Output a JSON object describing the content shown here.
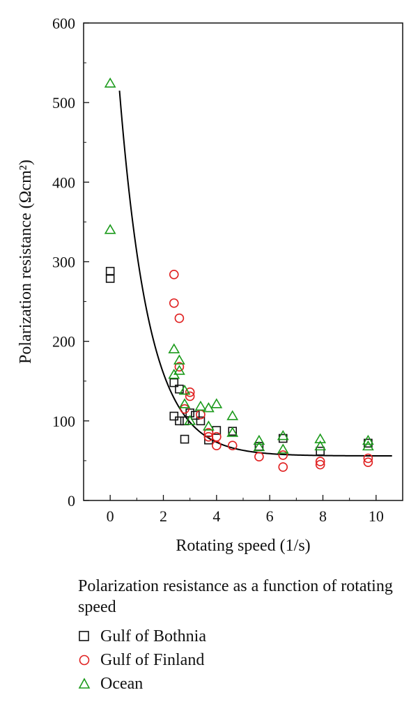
{
  "chart_data": {
    "type": "scatter",
    "xlabel": "Rotating speed (1/s)",
    "ylabel": "Polarization resistance (Ωcm²)",
    "xlim": [
      -1,
      11
    ],
    "ylim": [
      0,
      600
    ],
    "x_ticks": [
      0,
      2,
      4,
      6,
      8,
      10
    ],
    "y_ticks": [
      0,
      100,
      200,
      300,
      400,
      500,
      600
    ],
    "grid": false,
    "legend_position": "below",
    "caption": "Polarization resistance as a function of rotating speed",
    "series": [
      {
        "name": "Gulf of Bothnia",
        "marker": "square",
        "color": "#111111",
        "points": [
          [
            0,
            288
          ],
          [
            0,
            279
          ],
          [
            2.4,
            148
          ],
          [
            2.4,
            106
          ],
          [
            2.6,
            140
          ],
          [
            2.6,
            100
          ],
          [
            2.8,
            100
          ],
          [
            2.8,
            77
          ],
          [
            3.0,
            110
          ],
          [
            3.2,
            107
          ],
          [
            3.4,
            100
          ],
          [
            3.7,
            76
          ],
          [
            4.0,
            88
          ],
          [
            4.6,
            87
          ],
          [
            5.6,
            68
          ],
          [
            6.5,
            78
          ],
          [
            7.9,
            62
          ],
          [
            9.7,
            72
          ]
        ]
      },
      {
        "name": "Gulf of Finland",
        "marker": "circle",
        "color": "#e02020",
        "points": [
          [
            2.4,
            284
          ],
          [
            2.4,
            248
          ],
          [
            2.6,
            229
          ],
          [
            2.6,
            168
          ],
          [
            2.8,
            115
          ],
          [
            3.0,
            136
          ],
          [
            3.0,
            131
          ],
          [
            3.4,
            108
          ],
          [
            3.7,
            85
          ],
          [
            3.7,
            80
          ],
          [
            4.0,
            80
          ],
          [
            4.0,
            69
          ],
          [
            4.6,
            69
          ],
          [
            5.6,
            55
          ],
          [
            6.5,
            57
          ],
          [
            6.5,
            42
          ],
          [
            7.9,
            49
          ],
          [
            7.9,
            45
          ],
          [
            9.7,
            53
          ],
          [
            9.7,
            48
          ]
        ]
      },
      {
        "name": "Ocean",
        "marker": "triangle",
        "color": "#1a9a1a",
        "points": [
          [
            0,
            524
          ],
          [
            0,
            340
          ],
          [
            2.4,
            190
          ],
          [
            2.4,
            158
          ],
          [
            2.6,
            176
          ],
          [
            2.6,
            163
          ],
          [
            2.8,
            138
          ],
          [
            2.8,
            121
          ],
          [
            3.0,
            100
          ],
          [
            3.4,
            118
          ],
          [
            3.7,
            116
          ],
          [
            3.7,
            93
          ],
          [
            4.0,
            121
          ],
          [
            4.6,
            106
          ],
          [
            4.6,
            85
          ],
          [
            5.6,
            75
          ],
          [
            5.6,
            67
          ],
          [
            6.5,
            81
          ],
          [
            6.5,
            64
          ],
          [
            7.9,
            77
          ],
          [
            7.9,
            68
          ],
          [
            9.7,
            75
          ],
          [
            9.7,
            68
          ]
        ]
      }
    ],
    "fit_curve": {
      "model": "exponential decay",
      "color": "#000000",
      "x_range": [
        0.35,
        10.6
      ],
      "asymptote": 56,
      "amplitude": 459,
      "rate": 0.9,
      "x0": 0.35
    }
  }
}
